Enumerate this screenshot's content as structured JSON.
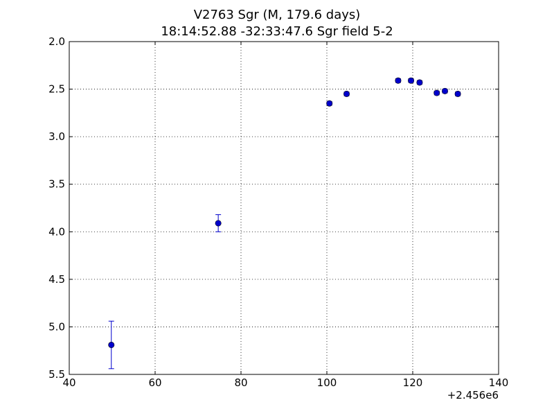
{
  "chart_data": {
    "type": "scatter",
    "title": "V2763 Sgr  (M, 179.6 days)",
    "subtitle": "18:14:52.88 -32:33:47.6 Sgr field 5-2",
    "xlabel": "",
    "ylabel": "",
    "x_offset_label": "+2.456e6",
    "xlim": [
      40,
      140
    ],
    "ylim": [
      5.5,
      2.0
    ],
    "y_inverted": true,
    "grid": true,
    "grid_style": "dotted",
    "x_ticks": [
      "40",
      "60",
      "80",
      "100",
      "120",
      "140"
    ],
    "y_ticks": [
      "2.0",
      "2.5",
      "3.0",
      "3.5",
      "4.0",
      "4.5",
      "5.0",
      "5.5"
    ],
    "marker_color": "#0000cc",
    "points": [
      {
        "x": 49.8,
        "y": 5.19,
        "err": 0.25
      },
      {
        "x": 74.7,
        "y": 3.91,
        "err": 0.09
      },
      {
        "x": 100.6,
        "y": 2.65,
        "err": 0.02
      },
      {
        "x": 104.6,
        "y": 2.55,
        "err": 0.02
      },
      {
        "x": 116.6,
        "y": 2.41,
        "err": 0.02
      },
      {
        "x": 119.6,
        "y": 2.41,
        "err": 0.02
      },
      {
        "x": 121.6,
        "y": 2.43,
        "err": 0.02
      },
      {
        "x": 125.6,
        "y": 2.54,
        "err": 0.02
      },
      {
        "x": 127.5,
        "y": 2.52,
        "err": 0.02
      },
      {
        "x": 130.5,
        "y": 2.55,
        "err": 0.02
      }
    ]
  }
}
